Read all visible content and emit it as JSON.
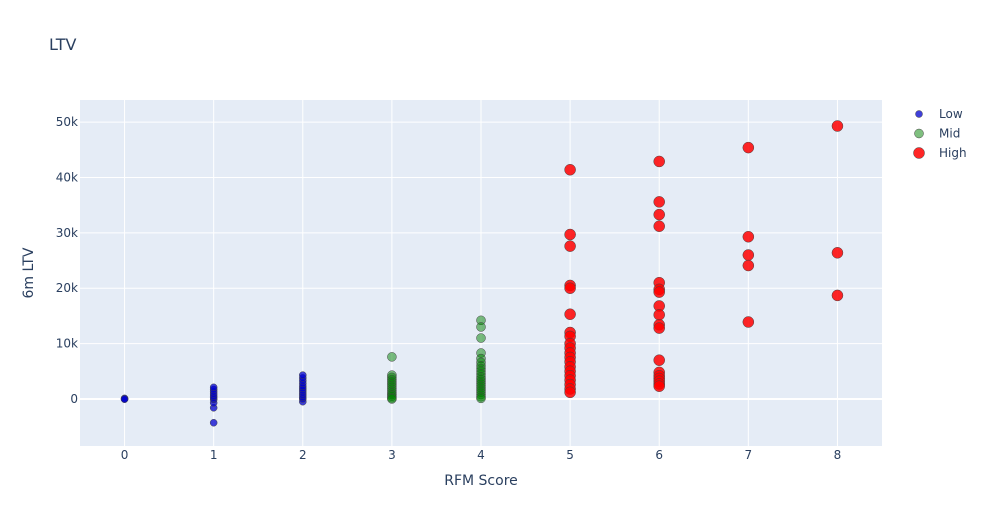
{
  "chart_data": {
    "type": "scatter",
    "title": "LTV",
    "xlabel": "RFM Score",
    "ylabel": "6m LTV",
    "xlim": [
      -0.5,
      8.5
    ],
    "ylim": [
      -8500,
      54000
    ],
    "x_ticks": [
      0,
      1,
      2,
      3,
      4,
      5,
      6,
      7,
      8
    ],
    "y_ticks": [
      0,
      10000,
      20000,
      30000,
      40000,
      50000
    ],
    "y_tick_labels": [
      "0",
      "10k",
      "20k",
      "30k",
      "40k",
      "50k"
    ],
    "grid": true,
    "legend_position": "top-right",
    "colors": {
      "plot_bg": "#e5ecf6",
      "grid": "#ffffff",
      "text": "#2a3f5f"
    },
    "series": [
      {
        "name": "Low",
        "color": "#0000cc",
        "marker_size": 7,
        "opacity": 0.75,
        "points": [
          [
            0,
            0
          ],
          [
            0,
            100
          ],
          [
            0,
            -50
          ],
          [
            1,
            -4300
          ],
          [
            1,
            -1600
          ],
          [
            1,
            -700
          ],
          [
            1,
            -100
          ],
          [
            1,
            200
          ],
          [
            1,
            500
          ],
          [
            1,
            900
          ],
          [
            1,
            1300
          ],
          [
            1,
            1700
          ],
          [
            1,
            2100
          ],
          [
            2,
            -500
          ],
          [
            2,
            0
          ],
          [
            2,
            300
          ],
          [
            2,
            700
          ],
          [
            2,
            1100
          ],
          [
            2,
            1500
          ],
          [
            2,
            1900
          ],
          [
            2,
            2300
          ],
          [
            2,
            2800
          ],
          [
            2,
            3300
          ],
          [
            2,
            3800
          ],
          [
            2,
            4300
          ]
        ]
      },
      {
        "name": "Mid",
        "color": "#008000",
        "marker_size": 9,
        "opacity": 0.5,
        "points": [
          [
            3,
            7600
          ],
          [
            3,
            4300
          ],
          [
            3,
            3900
          ],
          [
            3,
            3500
          ],
          [
            3,
            3100
          ],
          [
            3,
            2700
          ],
          [
            3,
            2300
          ],
          [
            3,
            1900
          ],
          [
            3,
            1500
          ],
          [
            3,
            1100
          ],
          [
            3,
            800
          ],
          [
            3,
            500
          ],
          [
            3,
            200
          ],
          [
            3,
            0
          ],
          [
            4,
            14200
          ],
          [
            4,
            13000
          ],
          [
            4,
            11000
          ],
          [
            4,
            8300
          ],
          [
            4,
            7300
          ],
          [
            4,
            6600
          ],
          [
            4,
            6000
          ],
          [
            4,
            5500
          ],
          [
            4,
            5000
          ],
          [
            4,
            4500
          ],
          [
            4,
            4000
          ],
          [
            4,
            3600
          ],
          [
            4,
            3200
          ],
          [
            4,
            2800
          ],
          [
            4,
            2400
          ],
          [
            4,
            2000
          ],
          [
            4,
            1600
          ],
          [
            4,
            1200
          ],
          [
            4,
            800
          ],
          [
            4,
            400
          ],
          [
            4,
            100
          ]
        ]
      },
      {
        "name": "High",
        "color": "#ff0000",
        "marker_size": 11,
        "opacity": 0.85,
        "points": [
          [
            5,
            41400
          ],
          [
            5,
            29700
          ],
          [
            5,
            27600
          ],
          [
            5,
            20500
          ],
          [
            5,
            20000
          ],
          [
            5,
            15300
          ],
          [
            5,
            12000
          ],
          [
            5,
            11300
          ],
          [
            5,
            10000
          ],
          [
            5,
            9200
          ],
          [
            5,
            8300
          ],
          [
            5,
            7500
          ],
          [
            5,
            6700
          ],
          [
            5,
            5800
          ],
          [
            5,
            5000
          ],
          [
            5,
            4200
          ],
          [
            5,
            3400
          ],
          [
            5,
            2600
          ],
          [
            5,
            1800
          ],
          [
            5,
            1200
          ],
          [
            6,
            42900
          ],
          [
            6,
            35600
          ],
          [
            6,
            33300
          ],
          [
            6,
            31200
          ],
          [
            6,
            21000
          ],
          [
            6,
            19800
          ],
          [
            6,
            19300
          ],
          [
            6,
            16800
          ],
          [
            6,
            15200
          ],
          [
            6,
            13400
          ],
          [
            6,
            12800
          ],
          [
            6,
            7000
          ],
          [
            6,
            4800
          ],
          [
            6,
            4200
          ],
          [
            6,
            3700
          ],
          [
            6,
            3200
          ],
          [
            6,
            2700
          ],
          [
            6,
            2300
          ],
          [
            7,
            45400
          ],
          [
            7,
            29300
          ],
          [
            7,
            26000
          ],
          [
            7,
            24100
          ],
          [
            7,
            13900
          ],
          [
            8,
            49300
          ],
          [
            8,
            26400
          ],
          [
            8,
            18700
          ]
        ]
      }
    ]
  }
}
